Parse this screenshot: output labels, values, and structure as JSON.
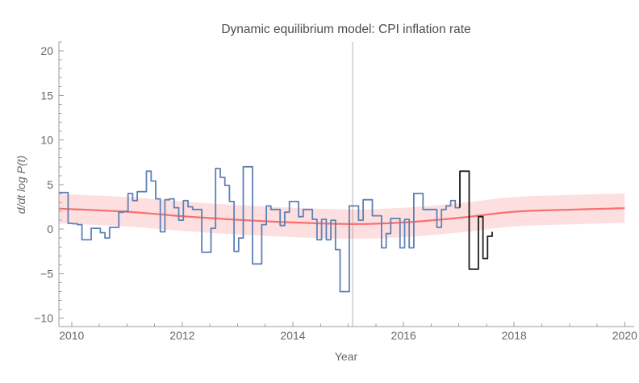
{
  "chart_data": {
    "type": "line",
    "title": "Dynamic equilibrium model: CPI inflation rate",
    "xlabel": "Year",
    "ylabel": "d/dt log P(t)",
    "xlim": [
      2009.77,
      2020.17
    ],
    "ylim": [
      -10.93,
      21.0
    ],
    "grid": false,
    "legend_position": "none",
    "x_major_ticks": [
      {
        "v": 2010,
        "label": "2010"
      },
      {
        "v": 2012,
        "label": "2012"
      },
      {
        "v": 2014,
        "label": "2014"
      },
      {
        "v": 2016,
        "label": "2016"
      },
      {
        "v": 2018,
        "label": "2018"
      },
      {
        "v": 2020,
        "label": "2020"
      }
    ],
    "x_minor_step": 0.5,
    "y_major_ticks": [
      {
        "v": -10,
        "label": "−10"
      },
      {
        "v": -5,
        "label": "−5"
      },
      {
        "v": 0,
        "label": "0"
      },
      {
        "v": 5,
        "label": "5"
      },
      {
        "v": 10,
        "label": "10"
      },
      {
        "v": 15,
        "label": "15"
      },
      {
        "v": 20,
        "label": "20"
      }
    ],
    "y_minor_step": 1,
    "annotations": {
      "vline_x": 2015.08,
      "vline_color": "#c6c6c6"
    },
    "colors": {
      "axis": "#9b9b9b",
      "observed": "#5e81b5",
      "new_data": "#1c1c1c",
      "model": "#f76f6f",
      "band": "rgba(246,110,110,0.22)"
    },
    "series": [
      {
        "name": "observed-step-blue",
        "type": "step",
        "start": 2009.77,
        "step": 0.083333,
        "values": [
          4.1,
          4.1,
          0.65,
          0.6,
          0.5,
          -1.2,
          -1.2,
          0.1,
          0.1,
          -0.4,
          -1.0,
          0.2,
          0.2,
          1.9,
          2.0,
          4.0,
          3.2,
          4.2,
          4.2,
          6.5,
          5.4,
          3.4,
          -0.3,
          3.3,
          3.4,
          2.4,
          1.0,
          3.2,
          2.5,
          2.2,
          2.2,
          -2.6,
          -2.6,
          0.1,
          6.8,
          5.8,
          4.9,
          3.1,
          -2.5,
          -1.0,
          7.0,
          7.0,
          -3.9,
          -3.9,
          0.5,
          2.6,
          2.2,
          2.2,
          0.4,
          1.9,
          3.1,
          3.1,
          1.4,
          2.2,
          2.2,
          1.1,
          -1.2,
          1.1,
          -1.2,
          1.0,
          -2.3,
          -7.0,
          -7.0,
          2.6,
          2.6,
          1.0,
          3.3,
          3.3,
          1.5,
          1.5,
          -2.1,
          -0.5,
          1.2,
          1.2,
          -2.1,
          1.1,
          -2.1,
          4.0,
          4.0,
          2.2,
          2.2,
          2.2,
          0.2,
          2.2,
          2.6,
          3.2,
          2.4
        ]
      },
      {
        "name": "new-data-step-black",
        "type": "step",
        "start": 2017.02,
        "step": 0.083333,
        "lead_in_from": 2.4,
        "lead_out_to": -0.3,
        "values": [
          6.5,
          6.5,
          -4.5,
          -4.5,
          1.4,
          -3.3,
          -0.8
        ]
      },
      {
        "name": "model-smooth-red",
        "type": "smooth",
        "band_half_width": 1.65,
        "points": [
          [
            2009.77,
            2.3
          ],
          [
            2011,
            1.95
          ],
          [
            2012,
            1.45
          ],
          [
            2013,
            1.05
          ],
          [
            2014,
            0.75
          ],
          [
            2015.1,
            0.57
          ],
          [
            2016,
            0.75
          ],
          [
            2017,
            1.26
          ],
          [
            2018,
            1.95
          ],
          [
            2019,
            2.18
          ],
          [
            2020,
            2.35
          ]
        ]
      }
    ]
  }
}
